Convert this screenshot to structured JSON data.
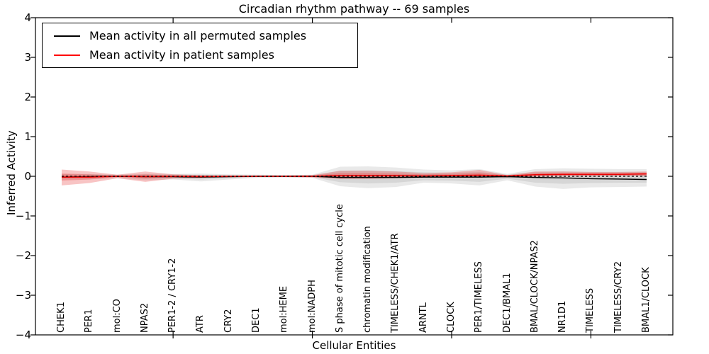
{
  "title": "Circadian rhythm pathway -- 69 samples",
  "legend": {
    "items": [
      {
        "label": "Mean activity in all permuted samples",
        "color": "#000000"
      },
      {
        "label": "Mean activity in patient samples",
        "color": "#ff0000"
      }
    ]
  },
  "chart_data": {
    "type": "line",
    "title": "Circadian rhythm pathway -- 69 samples",
    "xlabel": "Cellular Entities",
    "ylabel": "Inferred Activity",
    "ylim": [
      -4,
      4
    ],
    "grid": false,
    "legend_position": "upper left",
    "ytick_labels": [
      "4",
      "3",
      "2",
      "1",
      "0",
      "−1",
      "−2",
      "−3",
      "−4"
    ],
    "ytick_values": [
      4,
      3,
      2,
      1,
      0,
      -1,
      -2,
      -3,
      -4
    ],
    "x_tick_positions": [
      4,
      9,
      14,
      19
    ],
    "categories": [
      "CHEK1",
      "PER1",
      "mol:CO",
      "NPAS2",
      "PER1-2 / CRY1-2",
      "ATR",
      "CRY2",
      "DEC1",
      "mol:HEME",
      "mol:NADPH",
      "S phase of mitotic cell cycle",
      "chromatin modification",
      "TIMELESS/CHEK1/ATR",
      "ARNTL",
      "CLOCK",
      "PER1/TIMELESS",
      "DEC1/BMAL1",
      "BMAL/CLOCK/NPAS2",
      "NR1D1",
      "TIMELESS",
      "TIMELESS/CRY2",
      "BMAL1/CLOCK"
    ],
    "series": [
      {
        "name": "Mean activity in all permuted samples",
        "color": "#000000",
        "values": [
          -0.02,
          -0.01,
          0.0,
          -0.01,
          -0.01,
          -0.02,
          -0.01,
          0.0,
          0.0,
          0.0,
          -0.03,
          -0.03,
          -0.03,
          -0.02,
          -0.02,
          -0.02,
          -0.01,
          -0.03,
          -0.04,
          -0.06,
          -0.07,
          -0.08
        ]
      },
      {
        "name": "Mean activity in patient samples",
        "color": "#f00000",
        "values": [
          -0.02,
          -0.02,
          0.0,
          -0.01,
          0.0,
          -0.01,
          0.0,
          0.0,
          0.0,
          0.0,
          0.02,
          0.02,
          0.02,
          0.01,
          0.02,
          0.03,
          0.01,
          0.04,
          0.05,
          0.05,
          0.05,
          0.06
        ]
      }
    ],
    "bands": [
      {
        "name": "permuted-spread-outer",
        "color": "#787878",
        "opacity": 0.16,
        "upper": [
          0.06,
          0.06,
          0.04,
          0.07,
          0.06,
          0.07,
          0.05,
          0.04,
          0.03,
          0.04,
          0.24,
          0.25,
          0.22,
          0.17,
          0.15,
          0.18,
          0.06,
          0.18,
          0.2,
          0.19,
          0.18,
          0.18
        ],
        "lower": [
          -0.08,
          -0.08,
          -0.05,
          -0.1,
          -0.08,
          -0.13,
          -0.08,
          -0.04,
          -0.03,
          -0.04,
          -0.25,
          -0.3,
          -0.27,
          -0.16,
          -0.18,
          -0.23,
          -0.1,
          -0.26,
          -0.32,
          -0.28,
          -0.27,
          -0.26
        ]
      },
      {
        "name": "permuted-spread-inner",
        "color": "#787878",
        "opacity": 0.16,
        "upper": [
          0.04,
          0.04,
          0.02,
          0.04,
          0.04,
          0.04,
          0.03,
          0.02,
          0.02,
          0.02,
          0.14,
          0.15,
          0.13,
          0.1,
          0.09,
          0.11,
          0.04,
          0.11,
          0.12,
          0.11,
          0.11,
          0.11
        ],
        "lower": [
          -0.05,
          -0.05,
          -0.03,
          -0.06,
          -0.05,
          -0.08,
          -0.05,
          -0.02,
          -0.02,
          -0.02,
          -0.15,
          -0.18,
          -0.16,
          -0.1,
          -0.11,
          -0.14,
          -0.06,
          -0.16,
          -0.19,
          -0.17,
          -0.16,
          -0.16
        ]
      },
      {
        "name": "patient-spread-outer",
        "color": "#e73c3c",
        "opacity": 0.3,
        "upper": [
          0.17,
          0.12,
          0.04,
          0.12,
          0.05,
          0.03,
          0.02,
          0.02,
          0.02,
          0.03,
          0.14,
          0.14,
          0.12,
          0.08,
          0.1,
          0.16,
          0.03,
          0.12,
          0.12,
          0.11,
          0.11,
          0.12
        ],
        "lower": [
          -0.23,
          -0.17,
          -0.05,
          -0.14,
          -0.06,
          -0.04,
          -0.03,
          -0.02,
          -0.02,
          -0.03,
          -0.07,
          -0.07,
          -0.05,
          -0.03,
          -0.02,
          -0.02,
          -0.03,
          -0.01,
          0.0,
          0.0,
          0.01,
          0.01
        ]
      },
      {
        "name": "patient-spread-inner",
        "color": "#e73c3c",
        "opacity": 0.3,
        "upper": [
          0.07,
          0.05,
          0.02,
          0.05,
          0.02,
          0.02,
          0.01,
          0.01,
          0.01,
          0.02,
          0.08,
          0.08,
          0.07,
          0.05,
          0.06,
          0.09,
          0.02,
          0.08,
          0.08,
          0.08,
          0.08,
          0.09
        ],
        "lower": [
          -0.11,
          -0.08,
          -0.02,
          -0.06,
          -0.03,
          -0.02,
          -0.01,
          -0.01,
          -0.01,
          -0.02,
          -0.03,
          -0.03,
          -0.02,
          -0.01,
          0.0,
          0.0,
          -0.01,
          0.01,
          0.02,
          0.02,
          0.02,
          0.02
        ]
      }
    ],
    "zero_line": {
      "value": 0,
      "style": "dashed",
      "color": "#000000"
    }
  }
}
